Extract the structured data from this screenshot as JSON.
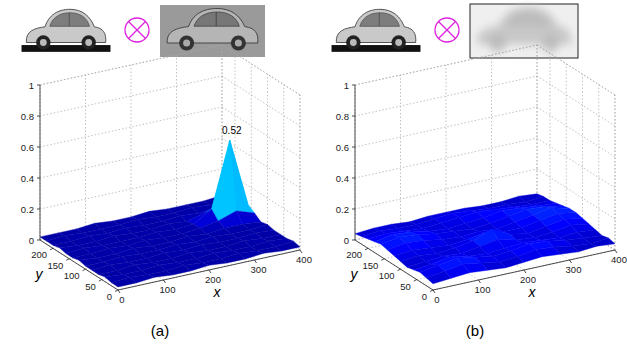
{
  "chart_data": [
    {
      "type": "surface",
      "label": "(a)",
      "xlabel": "x",
      "ylabel": "y",
      "xlim": [
        0,
        400
      ],
      "ylim": [
        0,
        240
      ],
      "zlim": [
        0,
        1
      ],
      "xticks": [
        0,
        100,
        200,
        300,
        400
      ],
      "yticks": [
        0,
        50,
        100,
        150,
        200
      ],
      "zticks": [
        0,
        0.2,
        0.4,
        0.6,
        0.8,
        1
      ],
      "grid": true,
      "clim": [
        0,
        0.6
      ],
      "annotation": {
        "text": "0.52",
        "x": 360,
        "y": 160,
        "z": 0.52
      },
      "x": [
        0,
        40,
        80,
        120,
        160,
        200,
        240,
        280,
        320,
        360,
        400
      ],
      "y": [
        0,
        20,
        40,
        60,
        80,
        100,
        120,
        140,
        160,
        180,
        200,
        220,
        240
      ],
      "z": [
        [
          0.02,
          0.02,
          0.03,
          0.02,
          0.02,
          0.03,
          0.02,
          0.02,
          0.03,
          0.02,
          0.02
        ],
        [
          0.02,
          0.03,
          0.02,
          0.02,
          0.03,
          0.02,
          0.02,
          0.03,
          0.02,
          0.02,
          0.03
        ],
        [
          0.03,
          0.02,
          0.02,
          0.03,
          0.02,
          0.02,
          0.03,
          0.02,
          0.02,
          0.03,
          0.02
        ],
        [
          0.02,
          0.02,
          0.03,
          0.02,
          0.02,
          0.03,
          0.02,
          0.02,
          0.03,
          0.02,
          0.02
        ],
        [
          0.02,
          0.03,
          0.02,
          0.02,
          0.03,
          0.02,
          0.03,
          0.02,
          0.02,
          0.03,
          0.02
        ],
        [
          0.02,
          0.02,
          0.03,
          0.02,
          0.02,
          0.03,
          0.02,
          0.03,
          0.02,
          0.02,
          0.03
        ],
        [
          0.03,
          0.02,
          0.02,
          0.03,
          0.02,
          0.02,
          0.03,
          0.02,
          0.03,
          0.03,
          0.02
        ],
        [
          0.02,
          0.02,
          0.03,
          0.02,
          0.03,
          0.02,
          0.02,
          0.03,
          0.05,
          0.09,
          0.05
        ],
        [
          0.02,
          0.03,
          0.02,
          0.02,
          0.02,
          0.03,
          0.02,
          0.03,
          0.1,
          0.52,
          0.08
        ],
        [
          0.03,
          0.02,
          0.02,
          0.03,
          0.02,
          0.02,
          0.03,
          0.02,
          0.05,
          0.1,
          0.04
        ],
        [
          0.02,
          0.02,
          0.03,
          0.02,
          0.03,
          0.02,
          0.02,
          0.03,
          0.02,
          0.03,
          0.02
        ],
        [
          0.02,
          0.03,
          0.02,
          0.02,
          0.02,
          0.03,
          0.02,
          0.02,
          0.03,
          0.02,
          0.02
        ],
        [
          0.02,
          0.02,
          0.02,
          0.03,
          0.02,
          0.02,
          0.03,
          0.02,
          0.02,
          0.02,
          0.03
        ]
      ]
    },
    {
      "type": "surface",
      "label": "(b)",
      "xlabel": "x",
      "ylabel": "y",
      "xlim": [
        0,
        400
      ],
      "ylim": [
        0,
        240
      ],
      "zlim": [
        0,
        1
      ],
      "xticks": [
        0,
        100,
        200,
        300,
        400
      ],
      "yticks": [
        0,
        50,
        100,
        150,
        200
      ],
      "zticks": [
        0,
        0.2,
        0.4,
        0.6,
        0.8,
        1
      ],
      "grid": true,
      "clim": [
        0,
        0.6
      ],
      "x": [
        0,
        40,
        80,
        120,
        160,
        200,
        240,
        280,
        320,
        360,
        400
      ],
      "y": [
        0,
        20,
        40,
        60,
        80,
        100,
        120,
        140,
        160,
        180,
        200,
        220,
        240
      ],
      "z": [
        [
          0.04,
          0.05,
          0.06,
          0.05,
          0.04,
          0.05,
          0.06,
          0.05,
          0.04,
          0.05,
          0.04
        ],
        [
          0.05,
          0.07,
          0.09,
          0.07,
          0.05,
          0.06,
          0.08,
          0.07,
          0.05,
          0.04,
          0.05
        ],
        [
          0.06,
          0.08,
          0.1,
          0.08,
          0.06,
          0.07,
          0.09,
          0.08,
          0.06,
          0.05,
          0.04
        ],
        [
          0.05,
          0.06,
          0.08,
          0.06,
          0.05,
          0.06,
          0.07,
          0.06,
          0.05,
          0.06,
          0.05
        ],
        [
          0.04,
          0.05,
          0.06,
          0.05,
          0.07,
          0.09,
          0.06,
          0.05,
          0.06,
          0.08,
          0.06
        ],
        [
          0.05,
          0.06,
          0.05,
          0.06,
          0.08,
          0.13,
          0.07,
          0.05,
          0.07,
          0.09,
          0.07
        ],
        [
          0.06,
          0.07,
          0.06,
          0.05,
          0.06,
          0.08,
          0.06,
          0.06,
          0.08,
          0.1,
          0.08
        ],
        [
          0.07,
          0.09,
          0.08,
          0.06,
          0.05,
          0.06,
          0.05,
          0.07,
          0.09,
          0.11,
          0.08
        ],
        [
          0.08,
          0.1,
          0.09,
          0.07,
          0.06,
          0.05,
          0.06,
          0.08,
          0.1,
          0.09,
          0.07
        ],
        [
          0.07,
          0.09,
          0.08,
          0.06,
          0.05,
          0.06,
          0.07,
          0.09,
          0.08,
          0.07,
          0.06
        ],
        [
          0.06,
          0.07,
          0.06,
          0.05,
          0.06,
          0.07,
          0.08,
          0.07,
          0.06,
          0.05,
          0.05
        ],
        [
          0.05,
          0.06,
          0.05,
          0.05,
          0.06,
          0.07,
          0.06,
          0.05,
          0.05,
          0.04,
          0.05
        ],
        [
          0.04,
          0.05,
          0.05,
          0.04,
          0.05,
          0.05,
          0.05,
          0.04,
          0.04,
          0.05,
          0.04
        ]
      ]
    }
  ]
}
